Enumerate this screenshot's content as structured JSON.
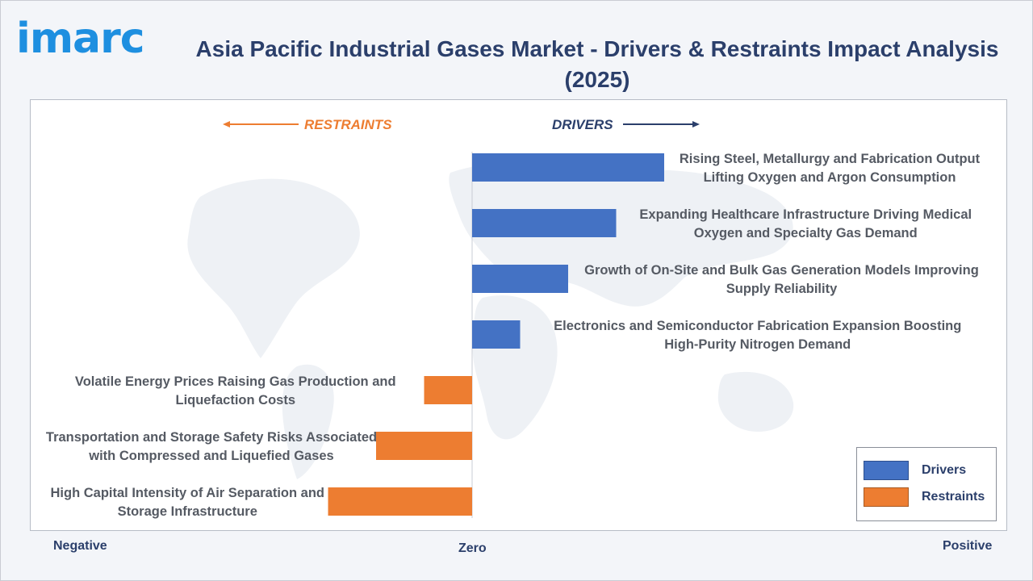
{
  "brand": {
    "logo_text": "imarc"
  },
  "title": "Asia Pacific Industrial Gases Market - Drivers & Restraints Impact Analysis (2025)",
  "headers": {
    "restraints": "RESTRAINTS",
    "drivers": "DRIVERS"
  },
  "axis_words": {
    "negative": "Negative",
    "zero": "Zero",
    "positive": "Positive"
  },
  "legend": [
    {
      "label": "Drivers",
      "color": "#4472c4"
    },
    {
      "label": "Restraints",
      "color": "#ed7d31"
    }
  ],
  "colors": {
    "driver": "#4472c4",
    "restraint": "#ed7d31",
    "title": "#2b3f6b",
    "logo": "#1e8fe0",
    "restraint_header": "#ed7d31",
    "driver_header": "#2b3f6b"
  },
  "chart_data": {
    "type": "bar",
    "orientation": "horizontal",
    "title": "Asia Pacific Industrial Gases Market - Drivers & Restraints Impact Analysis (2025)",
    "categories": [
      "Rising Steel, Metallurgy and Fabrication Output Lifting Oxygen and Argon Consumption",
      "Expanding Healthcare Infrastructure Driving Medical Oxygen and Specialty Gas Demand",
      "Growth of On-Site and Bulk Gas Generation Models Improving Supply Reliability",
      "Electronics and Semiconductor Fabrication Expansion Boosting High-Purity Nitrogen Demand",
      "Volatile Energy Prices Raising Gas Production and Liquefaction Costs",
      "Transportation and Storage Safety Risks Associated with Compressed and Liquefied Gases",
      "High Capital Intensity of Air Separation and Storage Infrastructure"
    ],
    "label_lines": [
      [
        "Rising Steel, Metallurgy and Fabrication Output",
        "Lifting Oxygen and Argon Consumption"
      ],
      [
        "Expanding Healthcare Infrastructure Driving Medical",
        "Oxygen and Specialty Gas Demand"
      ],
      [
        "Growth of On-Site and Bulk Gas Generation Models Improving",
        "Supply Reliability"
      ],
      [
        "Electronics and Semiconductor Fabrication Expansion Boosting",
        "High-Purity Nitrogen Demand"
      ],
      [
        "Volatile Energy Prices Raising Gas Production and",
        "Liquefaction Costs"
      ],
      [
        "Transportation and Storage Safety Risks Associated",
        "with Compressed and Liquefied Gases"
      ],
      [
        "High Capital Intensity of Air Separation and",
        "Storage Infrastructure"
      ]
    ],
    "values": [
      4,
      3,
      2,
      1,
      -1,
      -2,
      -3
    ],
    "series_type": [
      "Drivers",
      "Drivers",
      "Drivers",
      "Drivers",
      "Restraints",
      "Restraints",
      "Restraints"
    ],
    "xlim": [
      -3,
      4
    ],
    "xlabel": "",
    "ylabel": "",
    "legend_position": "bottom-right",
    "grid": false
  }
}
